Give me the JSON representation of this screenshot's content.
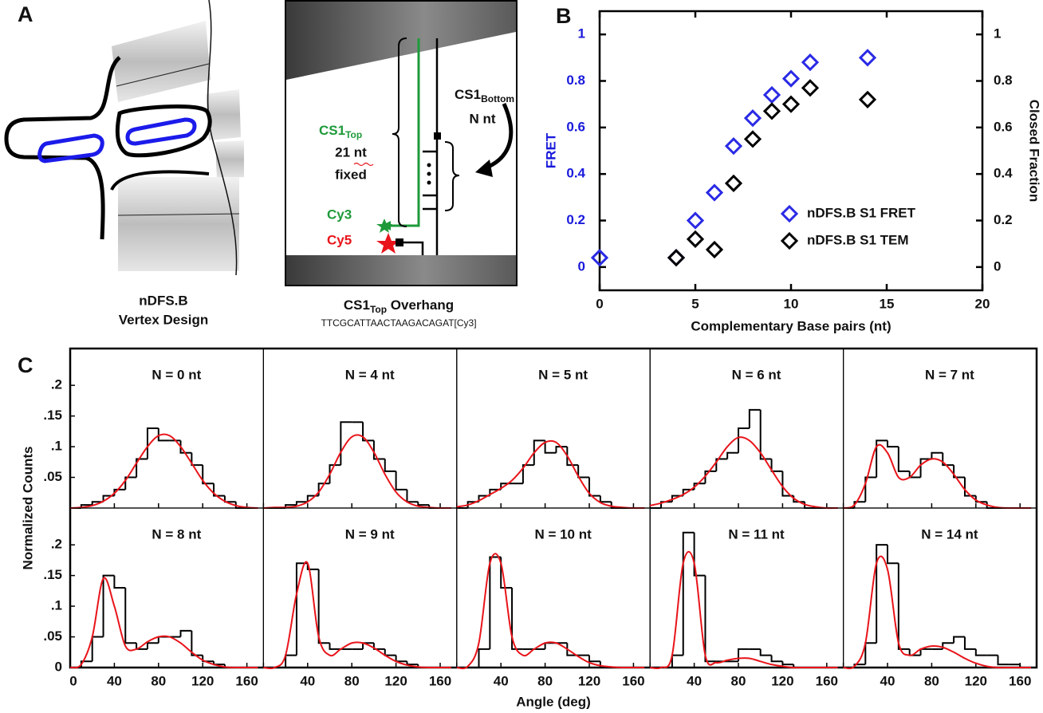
{
  "panel_labels": [
    "A",
    "B",
    "C"
  ],
  "panel_a": {
    "left_caption": [
      "nDFS.B",
      "Vertex Design"
    ],
    "inset": {
      "cs1_top": {
        "base": "CS1",
        "sub": "Top"
      },
      "top_lines": [
        "21 nt",
        "fixed"
      ],
      "cs1_bottom": {
        "base": "CS1",
        "sub": "Bottom"
      },
      "bottom_line": "N nt",
      "cy3": "Cy3",
      "cy5": "Cy5"
    },
    "caption": {
      "base": "CS1",
      "sub": "Top",
      "rest": " Overhang",
      "sequence": "TTCGCATTAACTAAGACAGAT[Cy3]"
    }
  },
  "chart_data": [
    {
      "type": "scatter",
      "xlabel": "Complementary Base pairs (nt)",
      "ylabel": "FRET",
      "y2label": "Closed Fraction",
      "ylabel_color": "#1a1adc",
      "xlim": [
        0,
        20
      ],
      "xticks": [
        0,
        5,
        10,
        15,
        20
      ],
      "ylim": [
        -0.1,
        1.1
      ],
      "yticks": [
        0,
        0.2,
        0.4,
        0.6,
        0.8,
        1
      ],
      "y2lim": [
        -0.1,
        1.1
      ],
      "y2ticks": [
        0,
        0.2,
        0.4,
        0.6,
        0.8,
        1
      ],
      "legend": "right",
      "series": [
        {
          "name": "nDFS.B S1 FRET",
          "color": "#2a2ae6",
          "x": [
            0,
            4,
            5,
            6,
            7,
            8,
            9,
            10,
            11,
            14
          ],
          "values": [
            0.04,
            0.04,
            0.2,
            0.32,
            0.52,
            0.64,
            0.74,
            0.81,
            0.88,
            0.9
          ]
        },
        {
          "name": "nDFS.B S1 TEM",
          "color": "#000000",
          "axis": "y2",
          "x": [
            4,
            5,
            6,
            7,
            8,
            9,
            10,
            11,
            14
          ],
          "values": [
            0.04,
            0.12,
            0.075,
            0.36,
            0.55,
            0.67,
            0.7,
            0.77,
            0.72
          ]
        }
      ]
    },
    {
      "type": "histogram",
      "xlabel": "Angle (deg)",
      "ylabel": "Normalized Counts",
      "columns": 5,
      "hist_color": "#000000",
      "fit_color": "#e8141a",
      "xlim": [
        0,
        175
      ],
      "xticks": [
        0,
        40,
        80,
        120,
        160
      ],
      "ylim": [
        0,
        0.26
      ],
      "yticks": [
        0,
        {
          "value": 0.05,
          "label": ".05"
        },
        {
          "value": 0.1,
          "label": ".1"
        },
        {
          "value": 0.15,
          "label": ".15"
        },
        {
          "value": 0.2,
          "label": ".2"
        }
      ],
      "bins": [
        0,
        10,
        20,
        30,
        40,
        50,
        60,
        70,
        80,
        90,
        100,
        110,
        120,
        130,
        140,
        150,
        160,
        170
      ],
      "fit_x": [
        0,
        10,
        20,
        30,
        40,
        50,
        60,
        70,
        80,
        90,
        100,
        110,
        120,
        130,
        140,
        150,
        160,
        170
      ],
      "panels": [
        {
          "title": "N = 0 nt",
          "counts": [
            0,
            0.005,
            0.01,
            0.02,
            0.03,
            0.05,
            0.08,
            0.13,
            0.11,
            0.11,
            0.09,
            0.07,
            0.04,
            0.02,
            0.01,
            0,
            0
          ],
          "fit": [
            0,
            0.001,
            0.004,
            0.011,
            0.024,
            0.045,
            0.073,
            0.1,
            0.118,
            0.118,
            0.1,
            0.073,
            0.045,
            0.024,
            0.011,
            0.004,
            0.001,
            0
          ]
        },
        {
          "title": "N = 4 nt",
          "counts": [
            0,
            0,
            0.005,
            0.01,
            0.02,
            0.04,
            0.07,
            0.14,
            0.14,
            0.11,
            0.08,
            0.06,
            0.03,
            0.01,
            0.005,
            0,
            0
          ],
          "fit": [
            0,
            0.001,
            0.001,
            0.003,
            0.01,
            0.026,
            0.055,
            0.091,
            0.116,
            0.116,
            0.091,
            0.055,
            0.026,
            0.01,
            0.003,
            0.001,
            0,
            0
          ]
        },
        {
          "title": "N = 5 nt",
          "counts": [
            0,
            0.01,
            0.02,
            0.03,
            0.04,
            0.04,
            0.07,
            0.11,
            0.09,
            0.1,
            0.07,
            0.05,
            0.02,
            0.01,
            0,
            0,
            0
          ],
          "fit": [
            0.002,
            0.005,
            0.012,
            0.022,
            0.032,
            0.045,
            0.065,
            0.09,
            0.107,
            0.107,
            0.085,
            0.052,
            0.024,
            0.009,
            0.003,
            0.001,
            0,
            0
          ]
        },
        {
          "title": "N = 6 nt",
          "counts": [
            0,
            0.01,
            0.02,
            0.03,
            0.04,
            0.06,
            0.08,
            0.09,
            0.13,
            0.16,
            0.08,
            0.06,
            0.02,
            0.01,
            0,
            0,
            0
          ],
          "fit": [
            0.004,
            0.008,
            0.014,
            0.022,
            0.034,
            0.052,
            0.075,
            0.1,
            0.115,
            0.11,
            0.09,
            0.062,
            0.035,
            0.016,
            0.006,
            0.002,
            0,
            0
          ]
        },
        {
          "title": "N = 7 nt",
          "counts": [
            0,
            0.01,
            0.05,
            0.11,
            0.1,
            0.06,
            0.05,
            0.08,
            0.09,
            0.07,
            0.05,
            0.02,
            0.01,
            0,
            0,
            0,
            0
          ],
          "fit": [
            0,
            0.005,
            0.04,
            0.1,
            0.09,
            0.05,
            0.05,
            0.07,
            0.08,
            0.075,
            0.055,
            0.03,
            0.013,
            0.005,
            0.001,
            0,
            0,
            0
          ]
        },
        {
          "title": "N = 8 nt",
          "counts": [
            0,
            0.01,
            0.05,
            0.15,
            0.13,
            0.04,
            0.03,
            0.04,
            0.05,
            0.05,
            0.06,
            0.02,
            0.01,
            0.005,
            0,
            0,
            0
          ],
          "fit": [
            0,
            0.005,
            0.05,
            0.145,
            0.1,
            0.035,
            0.03,
            0.042,
            0.05,
            0.05,
            0.04,
            0.025,
            0.012,
            0.005,
            0.001,
            0,
            0,
            0
          ]
        },
        {
          "title": "N = 9 nt",
          "counts": [
            0,
            0,
            0.02,
            0.17,
            0.16,
            0.04,
            0.03,
            0.03,
            0.03,
            0.04,
            0.03,
            0.02,
            0.01,
            0.005,
            0,
            0,
            0
          ],
          "fit": [
            0,
            0,
            0.02,
            0.12,
            0.17,
            0.05,
            0.02,
            0.03,
            0.04,
            0.04,
            0.032,
            0.02,
            0.01,
            0.004,
            0.001,
            0,
            0,
            0
          ]
        },
        {
          "title": "N = 10 nt",
          "counts": [
            0,
            0,
            0.03,
            0.18,
            0.13,
            0.03,
            0.03,
            0.03,
            0.04,
            0.04,
            0.02,
            0.02,
            0.01,
            0,
            0,
            0,
            0
          ],
          "fit": [
            0,
            0.002,
            0.04,
            0.17,
            0.17,
            0.05,
            0.02,
            0.03,
            0.04,
            0.04,
            0.03,
            0.018,
            0.008,
            0.003,
            0.001,
            0,
            0,
            0
          ]
        },
        {
          "title": "N = 11 nt",
          "counts": [
            0,
            0,
            0.02,
            0.22,
            0.15,
            0.01,
            0.01,
            0.01,
            0.03,
            0.03,
            0.02,
            0.01,
            0.005,
            0,
            0,
            0,
            0
          ],
          "fit": [
            0,
            0,
            0.02,
            0.17,
            0.17,
            0.02,
            0.008,
            0.012,
            0.015,
            0.015,
            0.01,
            0.005,
            0.002,
            0,
            0,
            0,
            0,
            0
          ]
        },
        {
          "title": "N = 14 nt",
          "counts": [
            0,
            0.005,
            0.04,
            0.2,
            0.17,
            0.03,
            0.02,
            0.03,
            0.03,
            0.04,
            0.05,
            0.03,
            0.02,
            0.02,
            0.005,
            0.005,
            0
          ],
          "fit": [
            0,
            0.002,
            0.04,
            0.17,
            0.16,
            0.04,
            0.02,
            0.03,
            0.035,
            0.033,
            0.025,
            0.015,
            0.007,
            0.002,
            0,
            0,
            0,
            0
          ]
        }
      ]
    }
  ]
}
